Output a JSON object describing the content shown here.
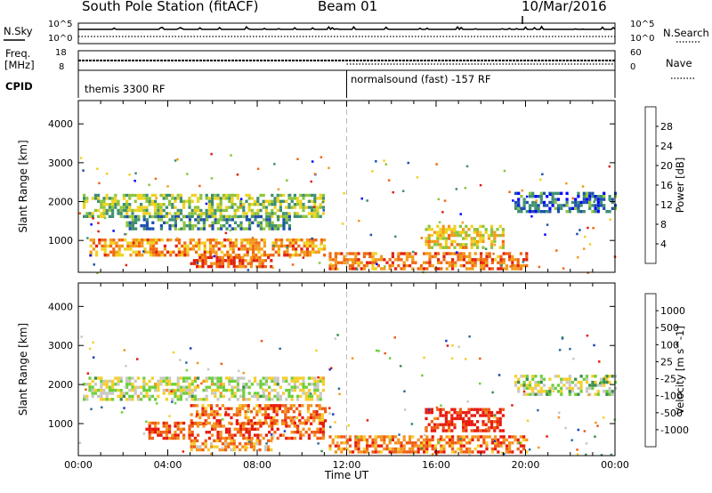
{
  "header": {
    "station": "South Pole Station (fitACF)",
    "beam": "Beam 01",
    "date": "10/Mar/2016"
  },
  "top_panels": {
    "nsky_label": "N.Sky",
    "nsearch_label": "N.Search",
    "nsky_ticks": [
      "10^5",
      "10^0"
    ],
    "nsearch_ticks": [
      "10^5",
      "10^0"
    ],
    "freq_label": "Freq.",
    "freq_unit": "[MHz]",
    "freq_ticks": [
      "18",
      "8"
    ],
    "nave_label": "Nave",
    "nave_ticks": [
      "60",
      "0"
    ],
    "cpid_label": "CPID",
    "cpid_segments": [
      "themis 3300 RF",
      "normalsound (fast) -157 RF"
    ]
  },
  "chart_data": [
    {
      "type": "heatmap",
      "name": "power",
      "ylabel": "Slant Range [km]",
      "ylim": [
        180,
        4600
      ],
      "yticks": [
        1000,
        2000,
        3000,
        4000
      ],
      "xlim": [
        0,
        24
      ],
      "cbar_label": "Power [dB]",
      "cbar_ticks": [
        "4",
        "8",
        "12",
        "16",
        "20",
        "24",
        "28"
      ],
      "cbar_colors": [
        "#0000ff",
        "#1d4fae",
        "#3e8f70",
        "#8cc43c",
        "#f0d21f",
        "#f39a1a",
        "#f06812",
        "#e02010"
      ],
      "bands": [
        {
          "t": [
            0.2,
            11.0
          ],
          "r": [
            1600,
            2200
          ],
          "v": 0.45
        },
        {
          "t": [
            2.0,
            9.5
          ],
          "r": [
            1300,
            1650
          ],
          "v": 0.3
        },
        {
          "t": [
            0.5,
            11.0
          ],
          "r": [
            650,
            1050
          ],
          "v": 0.72
        },
        {
          "t": [
            5.0,
            8.6
          ],
          "r": [
            360,
            600
          ],
          "v": 0.85
        },
        {
          "t": [
            11.2,
            20.0
          ],
          "r": [
            300,
            700
          ],
          "v": 0.78
        },
        {
          "t": [
            15.5,
            19.0
          ],
          "r": [
            800,
            1400
          ],
          "v": 0.6
        },
        {
          "t": [
            19.5,
            24.0
          ],
          "r": [
            1750,
            2250
          ],
          "v": 0.25
        }
      ]
    },
    {
      "type": "heatmap",
      "name": "velocity",
      "ylabel": "Slant Range [km]",
      "ylim": [
        180,
        4600
      ],
      "yticks": [
        1000,
        2000,
        3000,
        4000
      ],
      "xlim": [
        0,
        24
      ],
      "xlabel": "Time UT",
      "xticks": [
        "00:00",
        "04:00",
        "08:00",
        "12:00",
        "16:00",
        "20:00",
        "00:00"
      ],
      "cbar_label": "Velocity [m s^-1]",
      "cbar_ticks": [
        "1000",
        "500",
        "100",
        "25",
        "-25",
        "-100",
        "-500",
        "-1000"
      ],
      "cbar_colors": [
        "#1c3fb8",
        "#2f6ea0",
        "#3a8c4e",
        "#6ccf3a",
        "#c8c8c3",
        "#f6ce2a",
        "#f49420",
        "#ef5d15",
        "#e81a0c"
      ],
      "bands": [
        {
          "t": [
            0.2,
            11.0
          ],
          "r": [
            1600,
            2200
          ],
          "v": 0.5
        },
        {
          "t": [
            5.0,
            11.0
          ],
          "r": [
            1000,
            1500
          ],
          "v": 0.8
        },
        {
          "t": [
            3.0,
            11.0
          ],
          "r": [
            650,
            1050
          ],
          "v": 0.85
        },
        {
          "t": [
            5.0,
            8.6
          ],
          "r": [
            360,
            600
          ],
          "v": 0.7
        },
        {
          "t": [
            11.2,
            20.0
          ],
          "r": [
            300,
            700
          ],
          "v": 0.78
        },
        {
          "t": [
            15.5,
            19.0
          ],
          "r": [
            800,
            1400
          ],
          "v": 0.95
        },
        {
          "t": [
            19.5,
            24.0
          ],
          "r": [
            1750,
            2250
          ],
          "v": 0.48
        }
      ]
    }
  ]
}
